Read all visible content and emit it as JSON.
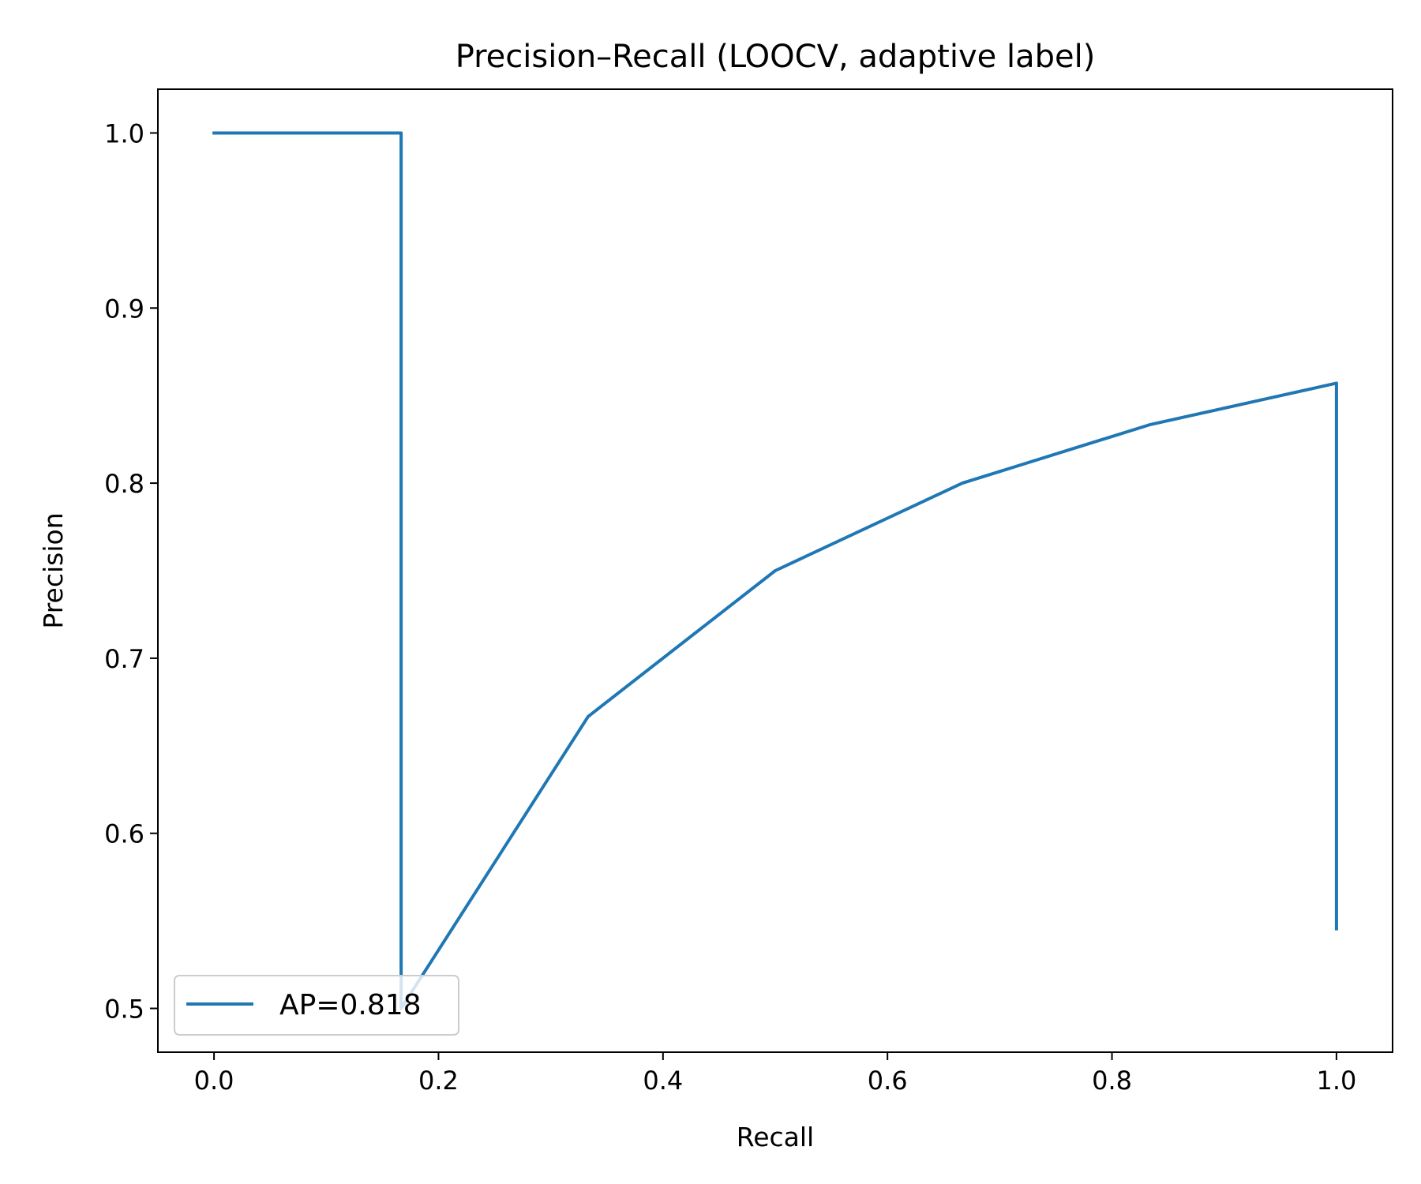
{
  "chart_data": {
    "type": "line",
    "title": "Precision–Recall (LOOCV, adaptive label)",
    "xlabel": "Recall",
    "ylabel": "Precision",
    "xlim": [
      -0.05,
      1.05
    ],
    "ylim": [
      0.475,
      1.025
    ],
    "x_ticks": [
      0.0,
      0.2,
      0.4,
      0.6,
      0.8,
      1.0
    ],
    "x_tick_labels": [
      "0.0",
      "0.2",
      "0.4",
      "0.6",
      "0.8",
      "1.0"
    ],
    "y_ticks": [
      0.5,
      0.6,
      0.7,
      0.8,
      0.9,
      1.0
    ],
    "y_tick_labels": [
      "0.5",
      "0.6",
      "0.7",
      "0.8",
      "0.9",
      "1.0"
    ],
    "grid": false,
    "legend_position": "lower-left",
    "series": [
      {
        "name": "AP=0.818",
        "color": "#1f77b4",
        "x": [
          0.0,
          0.1667,
          0.1667,
          0.3333,
          0.5,
          0.6667,
          0.8333,
          1.0,
          1.0
        ],
        "y": [
          1.0,
          1.0,
          0.5,
          0.6667,
          0.75,
          0.8,
          0.8333,
          0.8571,
          0.5455
        ]
      }
    ]
  }
}
